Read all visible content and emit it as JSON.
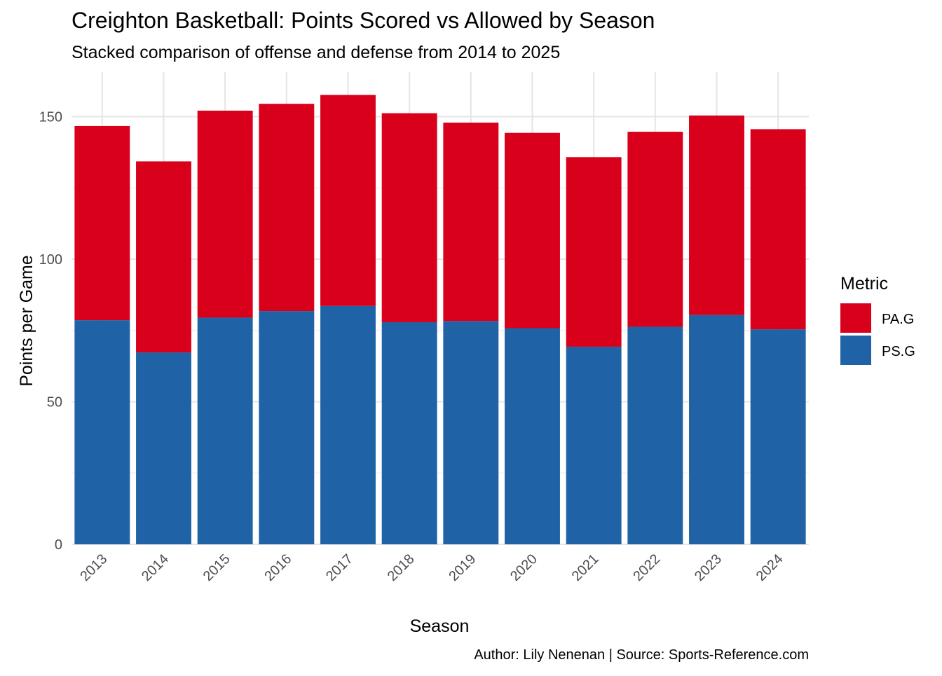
{
  "chart_data": {
    "type": "bar",
    "stacked": true,
    "title": "Creighton Basketball: Points Scored vs Allowed by Season",
    "subtitle": "Stacked comparison of offense and defense from 2014 to 2025",
    "xlabel": "Season",
    "ylabel": "Points per Game",
    "caption": "Author: Lily Nenenan | Source: Sports-Reference.com",
    "categories": [
      "2013",
      "2014",
      "2015",
      "2016",
      "2017",
      "2018",
      "2019",
      "2020",
      "2021",
      "2022",
      "2023",
      "2024"
    ],
    "ylim": [
      0,
      165
    ],
    "yticks": [
      0,
      50,
      100,
      150
    ],
    "grid": true,
    "legend": {
      "title": "Metric",
      "position": "right"
    },
    "series": [
      {
        "name": "PS.G",
        "color": "#1f63a6",
        "values": [
          78.6,
          67.3,
          79.5,
          81.8,
          83.6,
          77.9,
          78.3,
          75.8,
          69.3,
          76.3,
          80.4,
          75.4
        ]
      },
      {
        "name": "PA.G",
        "color": "#d9001b",
        "values": [
          68.1,
          67.0,
          72.6,
          72.7,
          74.0,
          73.3,
          69.6,
          68.5,
          66.5,
          68.4,
          70.0,
          70.2
        ]
      }
    ]
  }
}
